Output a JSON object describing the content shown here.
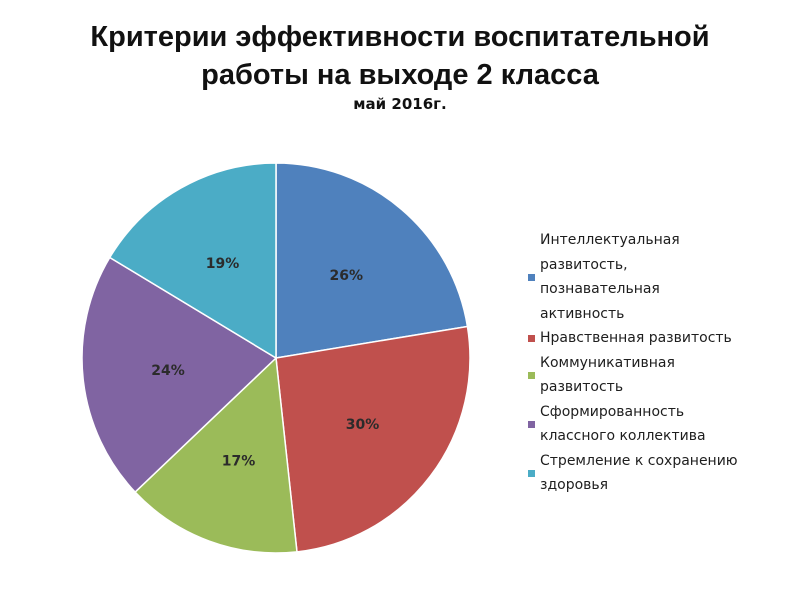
{
  "chart_data": {
    "type": "pie",
    "title_lines": [
      "Критерии эффективности воспитательной",
      "работы на выходе 2 класса"
    ],
    "subtitle": "май 2016г.",
    "slices": [
      {
        "name": "Интеллектуальная развитость, познавательная активность",
        "legend_lines": [
          "Интеллектуальная",
          "развитость,",
          "познавательная",
          "активность"
        ],
        "value": 26,
        "label": "26%",
        "color": "#4f81bd"
      },
      {
        "name": "Нравственная развитость",
        "legend_lines": [
          "Нравственная развитость"
        ],
        "value": 30,
        "label": "30%",
        "color": "#c0504d"
      },
      {
        "name": "Коммуникативная развитость",
        "legend_lines": [
          "Коммуникативная",
          "развитость"
        ],
        "value": 17,
        "label": "17%",
        "color": "#9bbb59"
      },
      {
        "name": "Сформированность классного коллектива",
        "legend_lines": [
          "Сформированность",
          "классного коллектива"
        ],
        "value": 24,
        "label": "24%",
        "color": "#8064a2"
      },
      {
        "name": "Стремление к сохранению здоровья",
        "legend_lines": [
          "Стремление к сохранению",
          "здоровья"
        ],
        "value": 19,
        "label": "19%",
        "color": "#4bacc6"
      }
    ],
    "legend_position": "right"
  }
}
